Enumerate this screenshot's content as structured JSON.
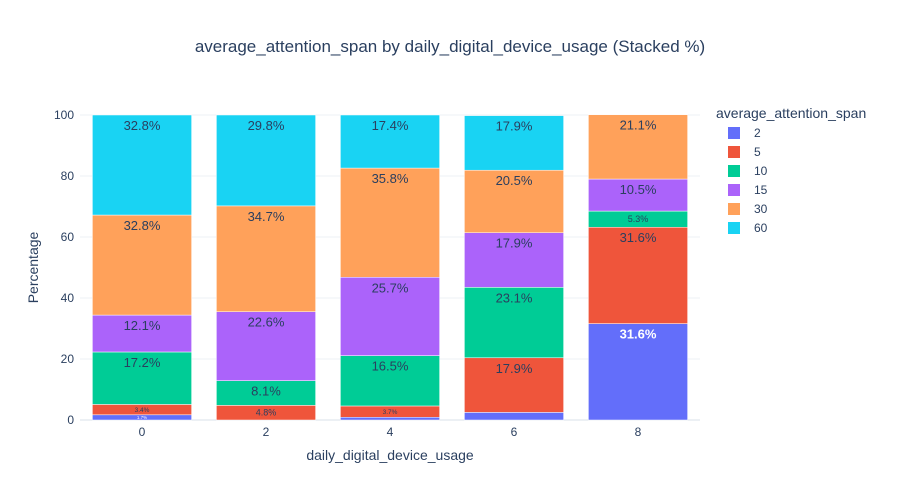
{
  "chart_data": {
    "type": "bar",
    "stacked": true,
    "title": "average_attention_span by daily_digital_device_usage (Stacked %)",
    "xlabel": "daily_digital_device_usage",
    "ylabel": "Percentage",
    "ylim": [
      0,
      100
    ],
    "yticks": [
      0,
      20,
      40,
      60,
      80,
      100
    ],
    "categories": [
      "0",
      "2",
      "4",
      "6",
      "8"
    ],
    "legend_title": "average_attention_span",
    "legend_position": "right",
    "series": [
      {
        "name": "2",
        "color": "#636efa",
        "values": [
          1.7,
          0,
          0.9,
          2.5,
          31.6
        ],
        "labels": [
          "1.7%",
          "",
          "",
          "",
          "31.6%"
        ]
      },
      {
        "name": "5",
        "color": "#ef553b",
        "values": [
          3.4,
          4.8,
          3.7,
          17.9,
          31.6
        ],
        "labels": [
          "3.4%",
          "4.8%",
          "3.7%",
          "17.9%",
          "31.6%"
        ]
      },
      {
        "name": "10",
        "color": "#00cc96",
        "values": [
          17.2,
          8.1,
          16.5,
          23.1,
          5.3
        ],
        "labels": [
          "17.2%",
          "8.1%",
          "16.5%",
          "23.1%",
          "5.3%"
        ]
      },
      {
        "name": "15",
        "color": "#ab63fa",
        "values": [
          12.1,
          22.6,
          25.7,
          17.9,
          10.5
        ],
        "labels": [
          "12.1%",
          "22.6%",
          "25.7%",
          "17.9%",
          "10.5%"
        ]
      },
      {
        "name": "30",
        "color": "#ffa15a",
        "values": [
          32.8,
          34.7,
          35.8,
          20.5,
          21.1
        ],
        "labels": [
          "32.8%",
          "34.7%",
          "35.8%",
          "20.5%",
          "21.1%"
        ]
      },
      {
        "name": "60",
        "color": "#19d3f3",
        "values": [
          32.8,
          29.8,
          17.4,
          17.9,
          0
        ],
        "labels": [
          "32.8%",
          "29.8%",
          "17.4%",
          "17.9%",
          ""
        ]
      }
    ]
  }
}
